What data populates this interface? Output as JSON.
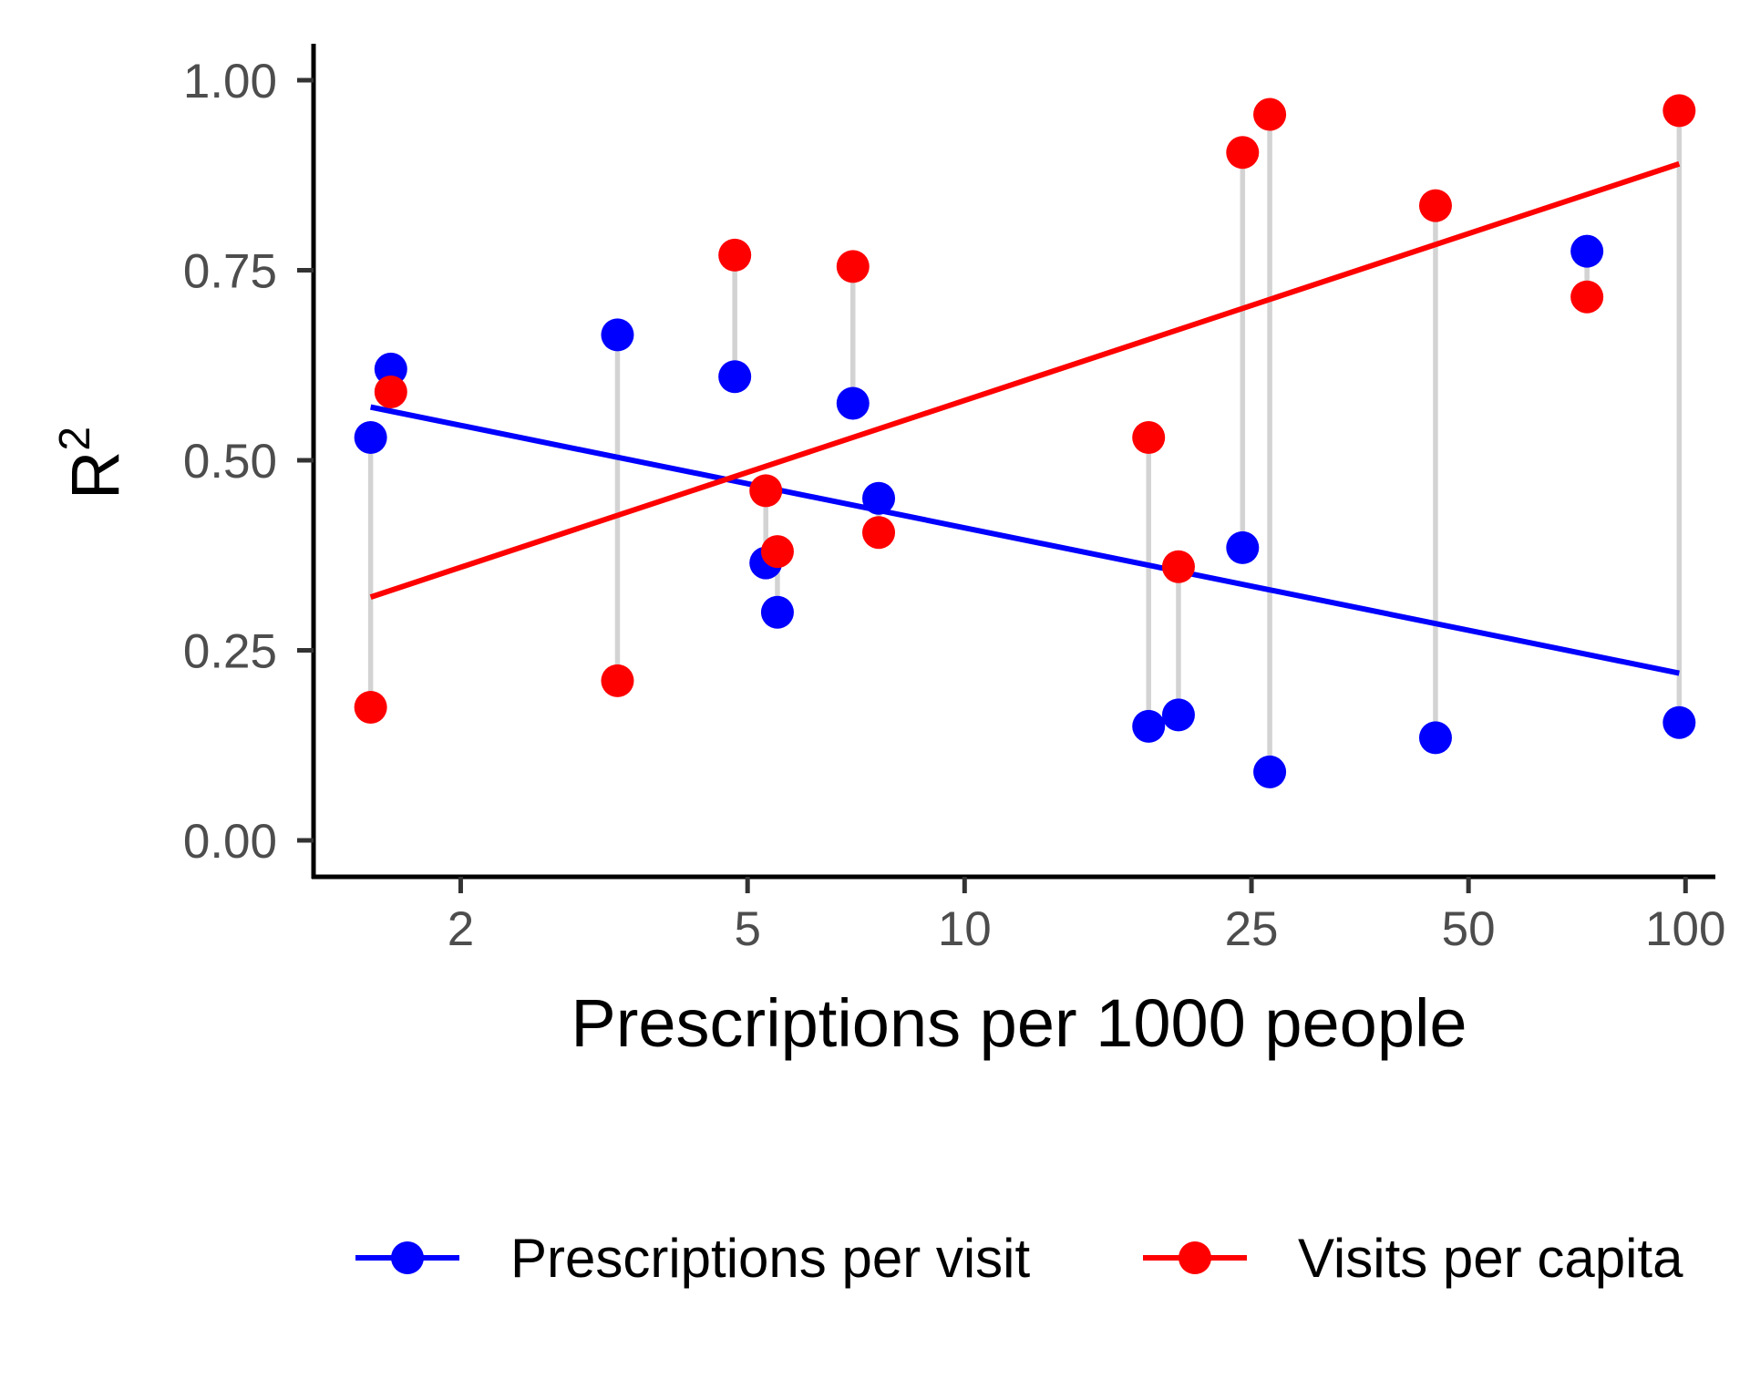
{
  "chart_data": {
    "type": "scatter",
    "xlabel": "Prescriptions per 1000 people",
    "ylabel": "R",
    "ylabel_superscript": "2",
    "x_scale": "log10",
    "xlim": [
      1.25,
      110
    ],
    "ylim": [
      -0.048,
      1.048
    ],
    "x_ticks": [
      2,
      5,
      10,
      25,
      50,
      100
    ],
    "x_tick_labels": [
      "2",
      "5",
      "10",
      "25",
      "50",
      "100"
    ],
    "y_ticks": [
      0,
      0.25,
      0.5,
      0.75,
      1.0
    ],
    "y_tick_labels": [
      "0.00",
      "0.25",
      "0.50",
      "0.75",
      "1.00"
    ],
    "grid": false,
    "legend_position": "bottom",
    "connector_color": "#d3d3d3",
    "series": [
      {
        "name": "Prescriptions per visit",
        "color": "#0000ff",
        "x": [
          1.5,
          1.6,
          3.3,
          4.8,
          5.3,
          5.5,
          7.0,
          7.6,
          18.0,
          19.8,
          24.3,
          26.5,
          45.0,
          73.0,
          98.0
        ],
        "y": [
          0.53,
          0.62,
          0.665,
          0.61,
          0.365,
          0.3,
          0.575,
          0.45,
          0.15,
          0.165,
          0.385,
          0.09,
          0.135,
          0.775,
          0.155
        ],
        "trend": [
          [
            1.5,
            0.57
          ],
          [
            98.0,
            0.22
          ]
        ]
      },
      {
        "name": "Visits per capita",
        "color": "#ff0000",
        "x": [
          1.5,
          1.6,
          3.3,
          4.8,
          5.3,
          5.5,
          7.0,
          7.6,
          18.0,
          19.8,
          24.3,
          26.5,
          45.0,
          73.0,
          98.0
        ],
        "y": [
          0.175,
          0.59,
          0.21,
          0.77,
          0.46,
          0.38,
          0.755,
          0.405,
          0.53,
          0.36,
          0.905,
          0.955,
          0.835,
          0.715,
          0.96
        ],
        "trend": [
          [
            1.5,
            0.32
          ],
          [
            98.0,
            0.89
          ]
        ]
      }
    ]
  }
}
